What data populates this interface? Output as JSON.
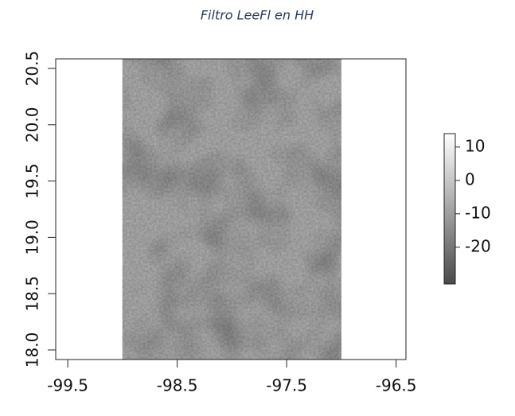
{
  "chart_data": {
    "type": "raster",
    "title": "Filtro LeeFl en HH",
    "xlim": [
      -99.61,
      -96.41
    ],
    "ylim": [
      17.915,
      20.585
    ],
    "xticks": [
      -99.5,
      -98.5,
      -97.5,
      -96.5
    ],
    "yticks": [
      {
        "value": 18.0,
        "label": "18.0"
      },
      {
        "value": 18.5,
        "label": "18.5"
      },
      {
        "value": 19.0,
        "label": "19.0"
      },
      {
        "value": 19.5,
        "label": "19.5"
      },
      {
        "value": 20.0,
        "label": "20.0"
      },
      {
        "value": 20.5,
        "label": "20.5"
      }
    ],
    "raster_xlim": [
      -99.0,
      -97.0
    ],
    "color": "#a8a8a8",
    "colorbar": {
      "lim": [
        -31,
        14
      ],
      "ticks": [
        10,
        0,
        -10,
        -20
      ],
      "colors": [
        "#4a4a4a",
        "#ffffff"
      ]
    }
  }
}
